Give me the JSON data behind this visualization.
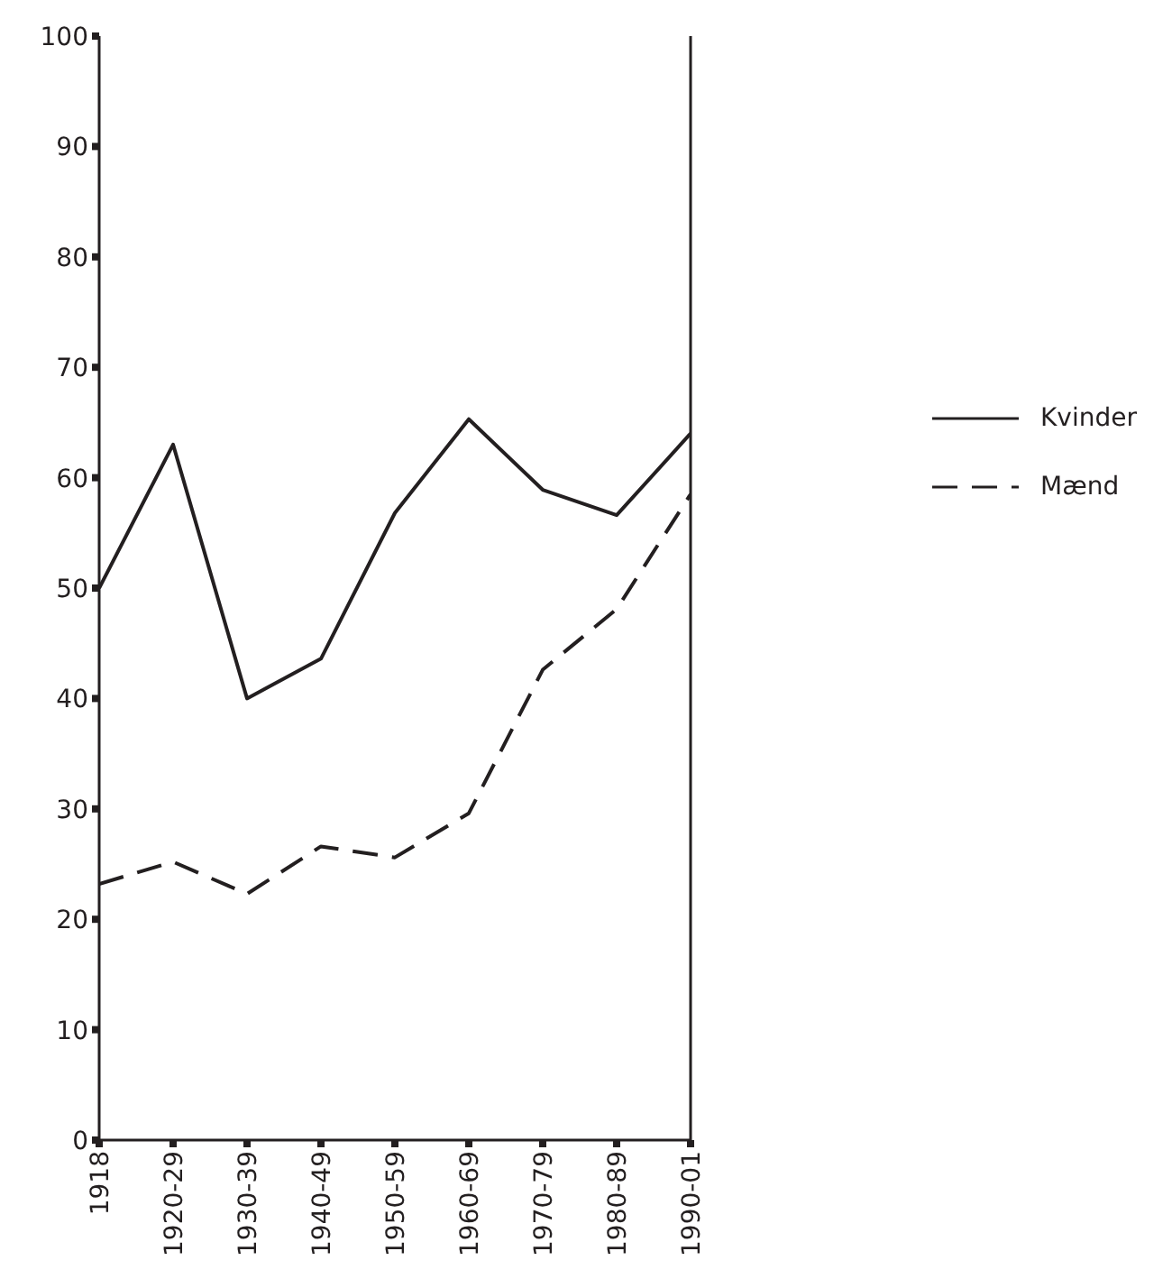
{
  "chart_data": {
    "type": "line",
    "categories": [
      "1918",
      "1920-29",
      "1930-39",
      "1940-49",
      "1950-59",
      "1960-69",
      "1970-79",
      "1980-89",
      "1990-01"
    ],
    "series": [
      {
        "name": "Kvinder",
        "color": "#231f20",
        "line_style": "solid",
        "values": [
          50,
          63,
          40,
          43.6,
          56.8,
          65.3,
          58.9,
          56.6,
          64
        ]
      },
      {
        "name": "Mænd",
        "color": "#231f20",
        "line_style": "dashed",
        "values": [
          23.2,
          25.2,
          22.3,
          26.6,
          25.6,
          29.6,
          42.6,
          48.1,
          58.5
        ]
      }
    ],
    "ylim": [
      0,
      100
    ],
    "yticks": [
      0,
      10,
      20,
      30,
      40,
      50,
      60,
      70,
      80,
      90,
      100
    ],
    "grid": false,
    "legend": "right",
    "marker": "none"
  }
}
